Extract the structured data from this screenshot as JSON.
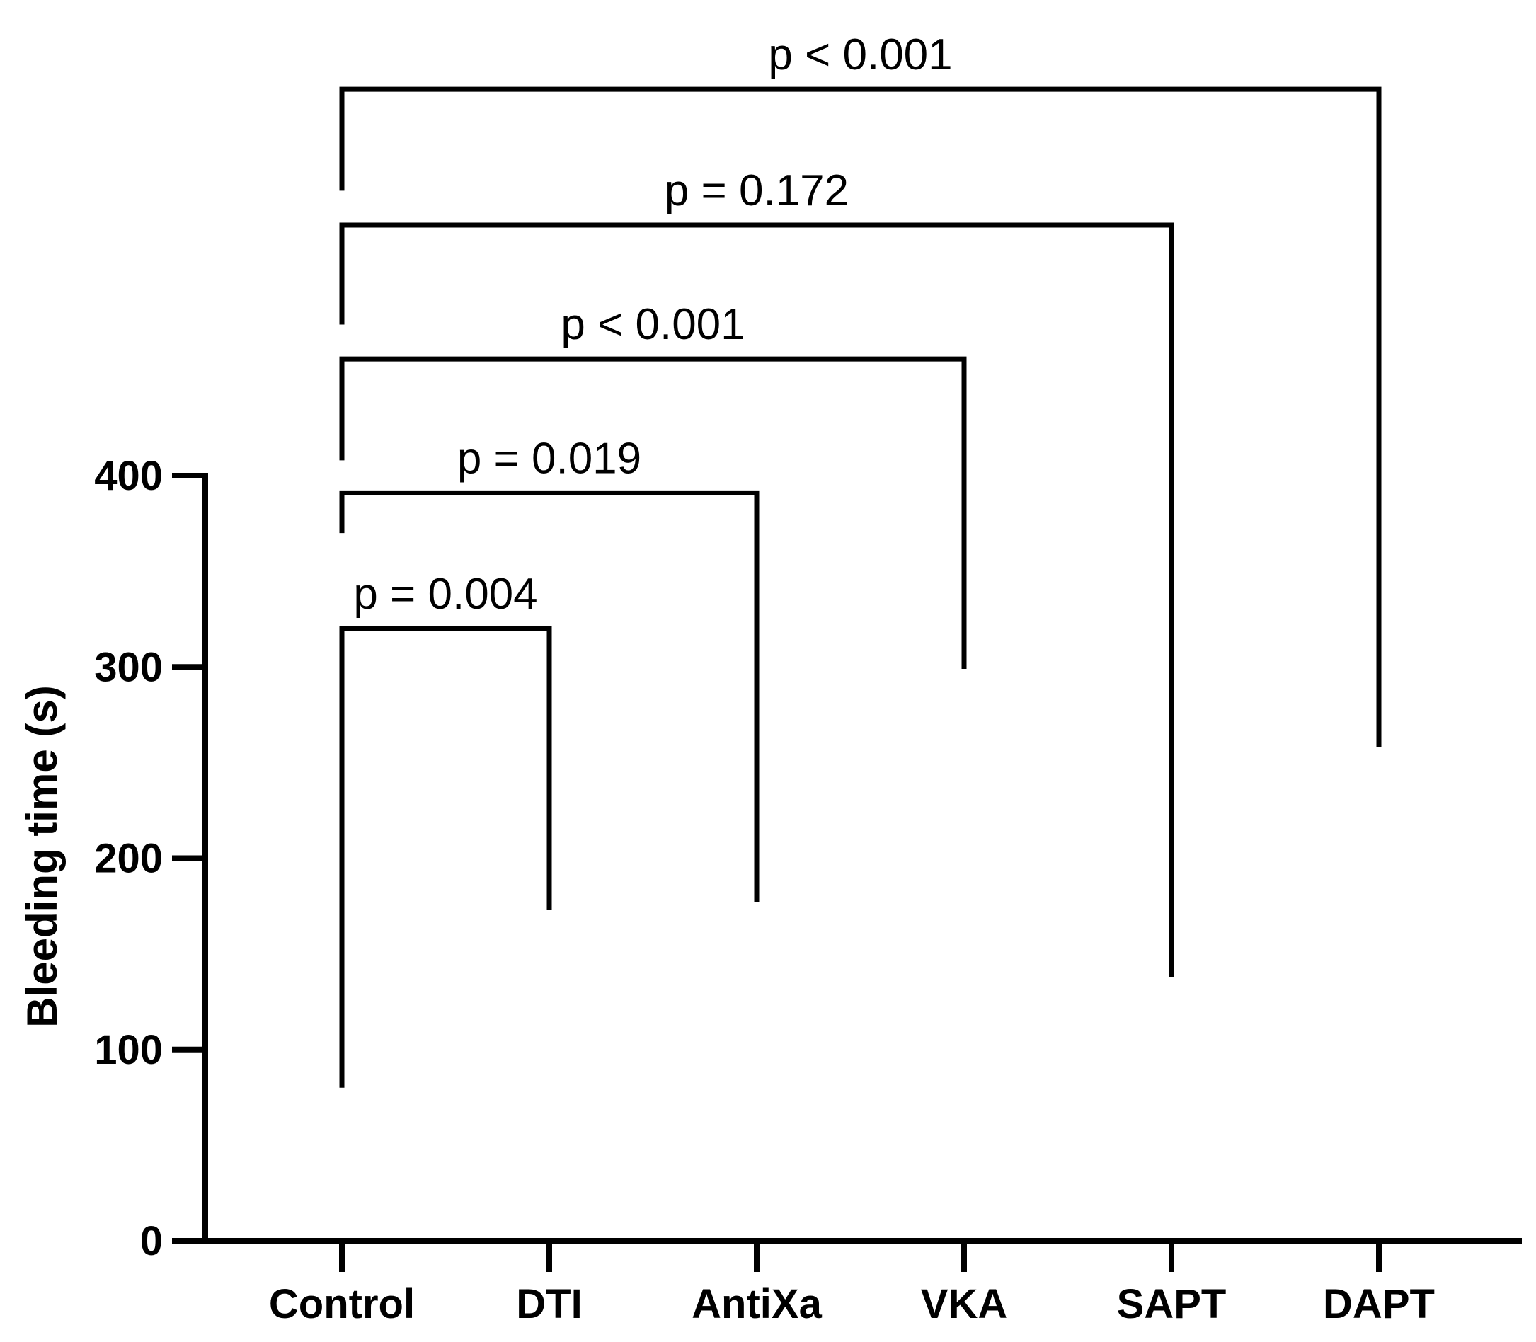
{
  "chart_data": {
    "type": "bar",
    "title": "",
    "xlabel": "",
    "ylabel": "Bleeding time (s)",
    "ylim": [
      0,
      400
    ],
    "yticks": [
      "0",
      "100",
      "200",
      "300",
      "400"
    ],
    "categories": [
      "Control",
      "DTI",
      "AntiXa",
      "VKA",
      "SAPT",
      "DAPT"
    ],
    "grid": false,
    "legend": "none",
    "comparisons": [
      {
        "from": "Control",
        "to": "DTI",
        "label": "p = 0.004",
        "bracket_y": 320,
        "from_y": 80,
        "to_y": 173
      },
      {
        "from": "Control",
        "to": "AntiXa",
        "label": "p = 0.019",
        "bracket_y": 391,
        "from_y": 370,
        "to_y": 177
      },
      {
        "from": "Control",
        "to": "VKA",
        "label": "p < 0.001",
        "bracket_y": 461,
        "from_y": 408,
        "to_y": 299
      },
      {
        "from": "Control",
        "to": "SAPT",
        "label": "p = 0.172",
        "bracket_y": 531,
        "from_y": 479,
        "to_y": 138
      },
      {
        "from": "Control",
        "to": "DAPT",
        "label": "p < 0.001",
        "bracket_y": 602,
        "from_y": 549,
        "to_y": 258
      }
    ]
  }
}
